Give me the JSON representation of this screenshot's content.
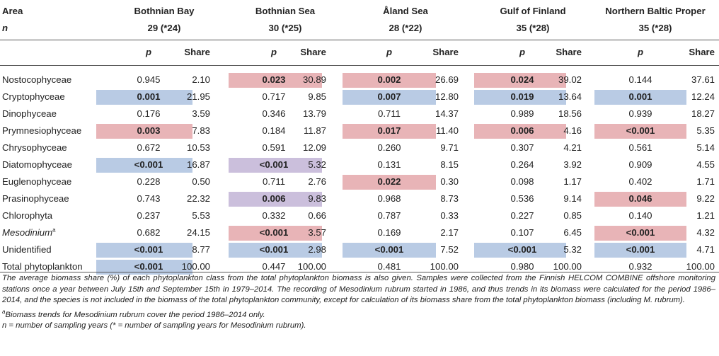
{
  "header": {
    "area_label": "Area",
    "n_label": "n",
    "p_label": "p",
    "share_label": "Share",
    "areas": [
      {
        "name": "Bothnian Bay",
        "n": "29 (*24)"
      },
      {
        "name": "Bothnian Sea",
        "n": "30 (*25)"
      },
      {
        "name": "Åland Sea",
        "n": "28 (*22)"
      },
      {
        "name": "Gulf of Finland",
        "n": "35 (*28)"
      },
      {
        "name": "Northern Baltic Proper",
        "n": "35 (*28)"
      }
    ]
  },
  "colors": {
    "red": "#e8b4b7",
    "blue": "#b9cbe4",
    "purple": "#cbbfdc"
  },
  "rows": [
    {
      "label": "Nostocophyceae",
      "cells": [
        {
          "p": "0.945",
          "share": "2.10"
        },
        {
          "p": "0.023",
          "share": "30.89",
          "hl": "red"
        },
        {
          "p": "0.002",
          "share": "26.69",
          "hl": "red"
        },
        {
          "p": "0.024",
          "share": "39.02",
          "hl": "red"
        },
        {
          "p": "0.144",
          "share": "37.61"
        }
      ]
    },
    {
      "label": "Cryptophyceae",
      "cells": [
        {
          "p": "0.001",
          "share": "21.95",
          "hl": "blue"
        },
        {
          "p": "0.717",
          "share": "9.85"
        },
        {
          "p": "0.007",
          "share": "12.80",
          "hl": "blue"
        },
        {
          "p": "0.019",
          "share": "13.64",
          "hl": "blue"
        },
        {
          "p": "0.001",
          "share": "12.24",
          "hl": "blue"
        }
      ]
    },
    {
      "label": "Dinophyceae",
      "cells": [
        {
          "p": "0.176",
          "share": "3.59"
        },
        {
          "p": "0.346",
          "share": "13.79"
        },
        {
          "p": "0.711",
          "share": "14.37"
        },
        {
          "p": "0.989",
          "share": "18.56"
        },
        {
          "p": "0.939",
          "share": "18.27"
        }
      ]
    },
    {
      "label": "Prymnesiophyceae",
      "cells": [
        {
          "p": "0.003",
          "share": "7.83",
          "hl": "red"
        },
        {
          "p": "0.184",
          "share": "11.87"
        },
        {
          "p": "0.017",
          "share": "11.40",
          "hl": "red"
        },
        {
          "p": "0.006",
          "share": "4.16",
          "hl": "red"
        },
        {
          "p": "<0.001",
          "share": "5.35",
          "hl": "red"
        }
      ]
    },
    {
      "label": "Chrysophyceae",
      "cells": [
        {
          "p": "0.672",
          "share": "10.53"
        },
        {
          "p": "0.591",
          "share": "12.09"
        },
        {
          "p": "0.260",
          "share": "9.71"
        },
        {
          "p": "0.307",
          "share": "4.21"
        },
        {
          "p": "0.561",
          "share": "5.14"
        }
      ]
    },
    {
      "label": "Diatomophyceae",
      "cells": [
        {
          "p": "<0.001",
          "share": "16.87",
          "hl": "blue"
        },
        {
          "p": "<0.001",
          "share": "5.32",
          "hl": "purple"
        },
        {
          "p": "0.131",
          "share": "8.15"
        },
        {
          "p": "0.264",
          "share": "3.92"
        },
        {
          "p": "0.909",
          "share": "4.55"
        }
      ]
    },
    {
      "label": "Euglenophyceae",
      "cells": [
        {
          "p": "0.228",
          "share": "0.50"
        },
        {
          "p": "0.711",
          "share": "2.76"
        },
        {
          "p": "0.022",
          "share": "0.30",
          "hl": "red"
        },
        {
          "p": "0.098",
          "share": "1.17"
        },
        {
          "p": "0.402",
          "share": "1.71"
        }
      ]
    },
    {
      "label": "Prasinophyceae",
      "cells": [
        {
          "p": "0.743",
          "share": "22.32"
        },
        {
          "p": "0.006",
          "share": "9.83",
          "hl": "purple"
        },
        {
          "p": "0.968",
          "share": "8.73"
        },
        {
          "p": "0.536",
          "share": "9.14"
        },
        {
          "p": "0.046",
          "share": "9.22",
          "hl": "red"
        }
      ]
    },
    {
      "label": "Chlorophyta",
      "cells": [
        {
          "p": "0.237",
          "share": "5.53"
        },
        {
          "p": "0.332",
          "share": "0.66"
        },
        {
          "p": "0.787",
          "share": "0.33"
        },
        {
          "p": "0.227",
          "share": "0.85"
        },
        {
          "p": "0.140",
          "share": "1.21"
        }
      ]
    },
    {
      "label": "Mesodinium",
      "label_sup": "a",
      "italic": true,
      "cells": [
        {
          "p": "0.682",
          "share": "24.15"
        },
        {
          "p": "<0.001",
          "share": "3.57",
          "hl": "red"
        },
        {
          "p": "0.169",
          "share": "2.17"
        },
        {
          "p": "0.107",
          "share": "6.45"
        },
        {
          "p": "<0.001",
          "share": "4.32",
          "hl": "red"
        }
      ]
    },
    {
      "label": "Unidentified",
      "cells": [
        {
          "p": "<0.001",
          "share": "8.77",
          "hl": "blue"
        },
        {
          "p": "<0.001",
          "share": "2.98",
          "hl": "blue"
        },
        {
          "p": "<0.001",
          "share": "7.52",
          "hl": "blue"
        },
        {
          "p": "<0.001",
          "share": "5.32",
          "hl": "blue"
        },
        {
          "p": "<0.001",
          "share": "4.71",
          "hl": "blue"
        }
      ]
    },
    {
      "label": "Total phytoplankton",
      "cells": [
        {
          "p": "<0.001",
          "share": "100.00",
          "hl": "blue"
        },
        {
          "p": "0.447",
          "share": "100.00"
        },
        {
          "p": "0.481",
          "share": "100.00"
        },
        {
          "p": "0.980",
          "share": "100.00"
        },
        {
          "p": "0.932",
          "share": "100.00"
        }
      ]
    }
  ],
  "notes": {
    "main": "The average biomass share (%) of each phytoplankton class from the total phytoplankton biomass is also given. Samples were collected from the Finnish HELCOM COMBINE offshore monitoring stations once a year between July 15th and September 15th in 1979–2014. The recording of Mesodinium rubrum started in 1986, and thus trends in its biomass were calculated for the period 1986–2014, and the species is not included in the biomass of the total phytoplankton community, except for calculation of its biomass share from the total phytoplankton biomass (including M. rubrum).",
    "footnote_mark": "a",
    "footnote": "Biomass trends for Mesodinium rubrum cover the period 1986–2014 only.",
    "n_note": "n = number of sampling years (* = number of sampling years for Mesodinium rubrum)."
  }
}
